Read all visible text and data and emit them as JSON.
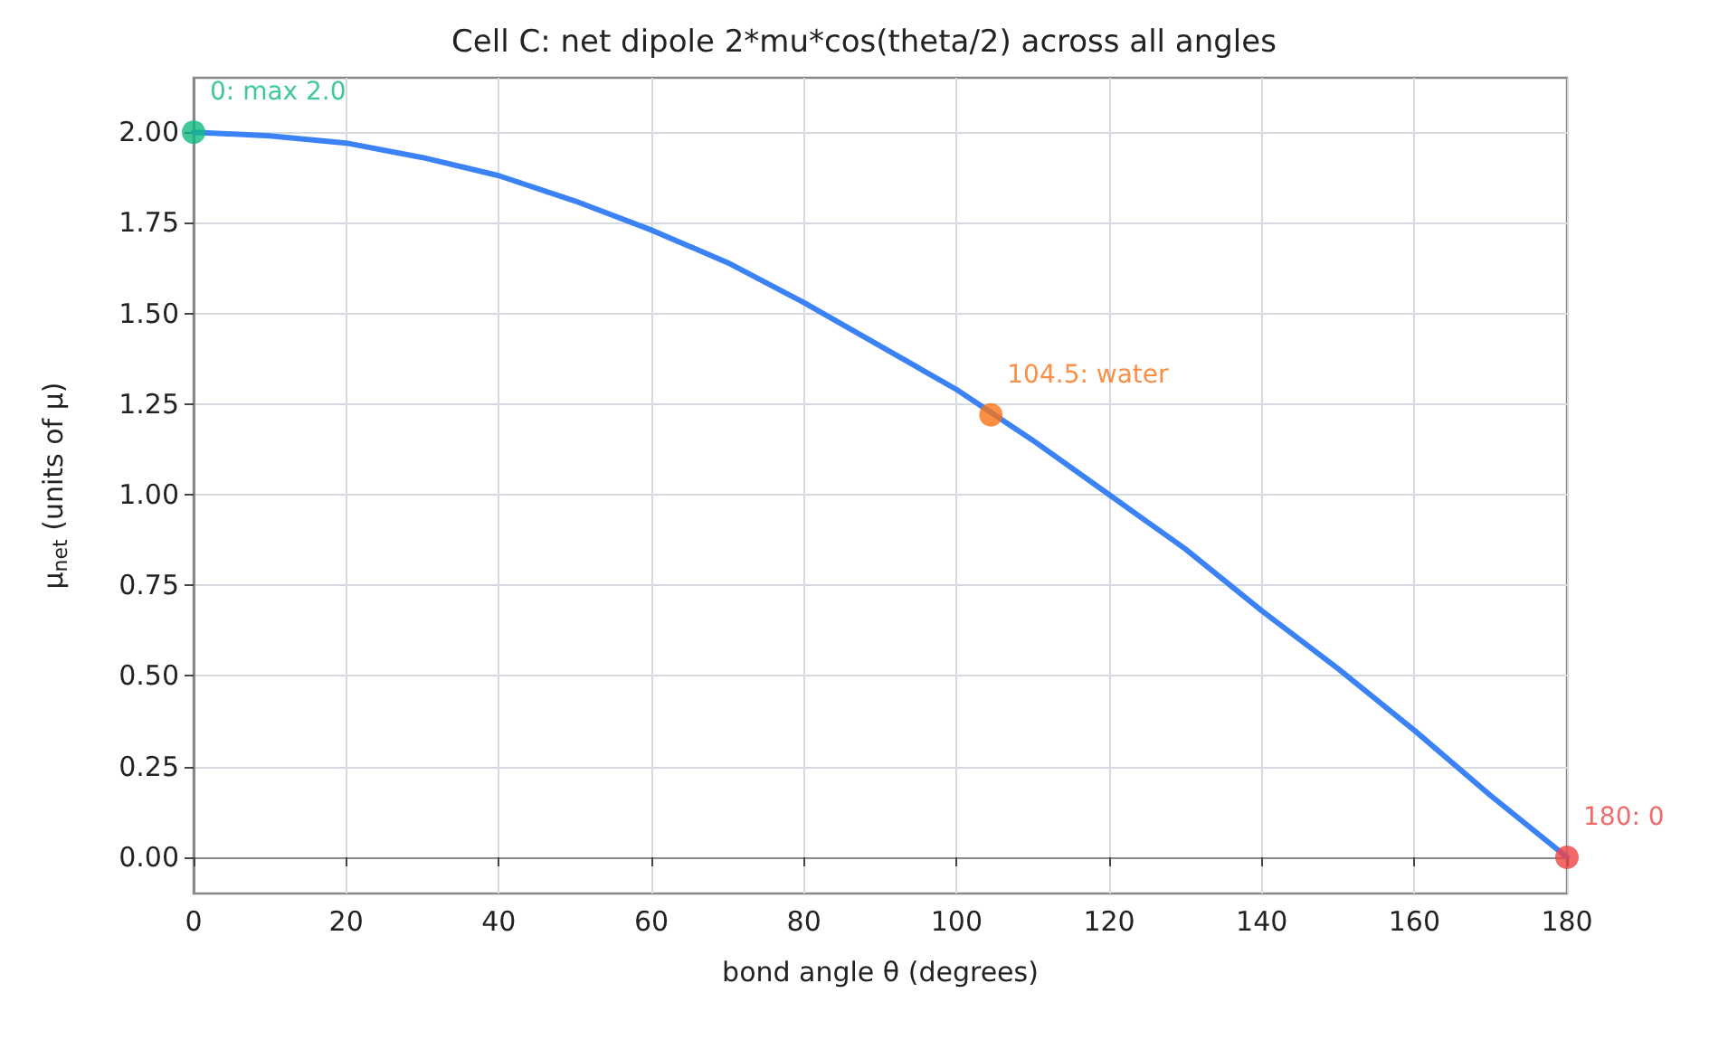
{
  "chart_data": {
    "type": "line",
    "title": "Cell C: net dipole 2*mu*cos(theta/2) across all angles",
    "xlabel": "bond angle θ (degrees)",
    "ylabel": "μ$_{net}$ (units of μ)",
    "series": [
      {
        "color": "#3b82f6",
        "marker": "none",
        "line_style": "solid",
        "x": [
          0,
          10,
          20,
          30,
          40,
          50,
          60,
          70,
          80,
          90,
          100,
          110,
          120,
          130,
          140,
          150,
          160,
          170,
          180
        ],
        "values": [
          2.0,
          1.99,
          1.97,
          1.93,
          1.88,
          1.81,
          1.73,
          1.64,
          1.53,
          1.41,
          1.29,
          1.15,
          1.0,
          0.85,
          0.68,
          0.52,
          0.35,
          0.17,
          0.0
        ]
      },
      {
        "type": "scatter",
        "marker": "circle",
        "x": [
          0,
          104.5,
          180
        ],
        "values": [
          2.0,
          1.22,
          0.0
        ],
        "colors": [
          "#10b981",
          "#f97316",
          "#ef4444"
        ]
      }
    ],
    "annotations": [
      {
        "text": "0: max 2.0",
        "x": 0,
        "y": 2.0
      },
      {
        "text": "104.5: water",
        "x": 104.5,
        "y": 1.22
      },
      {
        "text": "180: 0",
        "x": 180,
        "y": 0.0
      }
    ],
    "xlim": [
      0,
      180
    ],
    "xticks": [
      0,
      20,
      40,
      60,
      80,
      100,
      120,
      140,
      160,
      180
    ],
    "ylim": [
      -0.1,
      2.15
    ],
    "yticks": [
      {
        "value": 0,
        "label": "0.00"
      },
      {
        "value": 0.25,
        "label": "0.25"
      },
      {
        "value": 0.5,
        "label": "0.50"
      },
      {
        "value": 0.75,
        "label": "0.75"
      },
      {
        "value": 1,
        "label": "1.00"
      },
      {
        "value": 1.25,
        "label": "1.25"
      },
      {
        "value": 1.5,
        "label": "1.50"
      },
      {
        "value": 1.75,
        "label": "1.75"
      },
      {
        "value": 2,
        "label": "2.00"
      }
    ],
    "grid": true
  }
}
